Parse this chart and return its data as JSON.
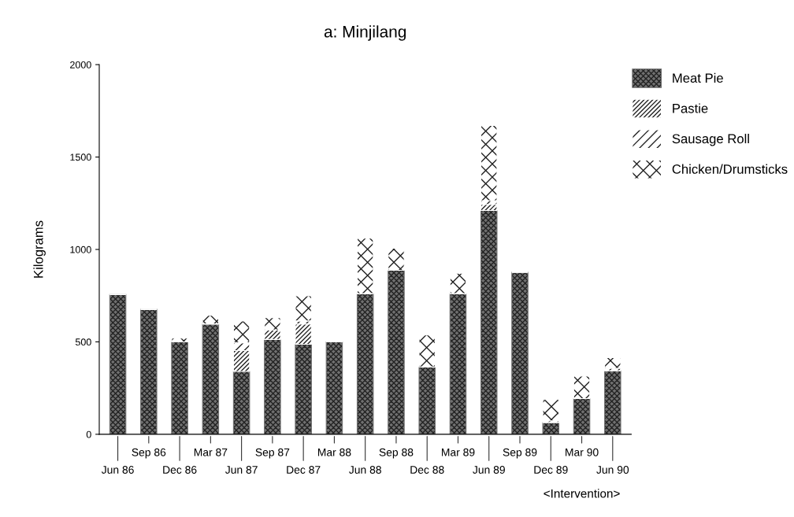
{
  "chart_data": {
    "type": "bar",
    "title": "a: Minjilang",
    "ylabel": "Kilograms",
    "stacked": true,
    "categories": [
      "Jun 86",
      "Sep 86",
      "Dec 86",
      "Mar 87",
      "Jun 87",
      "Sep 87",
      "Dec 87",
      "Mar 88",
      "Jun 88",
      "Sep 88",
      "Dec 88",
      "Mar 89",
      "Jun 89",
      "Sep 89",
      "Dec 89",
      "Mar 90",
      "Jun 90"
    ],
    "series": [
      {
        "name": "Meat Pie",
        "color": "#707070",
        "values": [
          756,
          676,
          500,
          597,
          340,
          513,
          487,
          500,
          761,
          887,
          364,
          761,
          1211,
          877,
          64,
          193,
          344
        ]
      },
      {
        "name": "Pastie",
        "color": "#ffffff",
        "values": [
          0,
          0,
          0,
          0,
          113,
          51,
          110,
          0,
          0,
          0,
          0,
          0,
          33,
          0,
          0,
          0,
          0
        ]
      },
      {
        "name": "Sausage Roll",
        "color": "#ffffff",
        "values": [
          0,
          0,
          0,
          0,
          42,
          0,
          16,
          0,
          0,
          0,
          0,
          0,
          20,
          0,
          9,
          0,
          13
        ]
      },
      {
        "name": "Chicken/Drumsticks",
        "color": "#ffffff",
        "values": [
          0,
          0,
          20,
          47,
          118,
          67,
          136,
          0,
          300,
          120,
          173,
          110,
          407,
          0,
          115,
          122,
          58
        ]
      }
    ],
    "ylim": [
      0,
      2000
    ],
    "yticks": [
      0,
      500,
      1000,
      1500,
      2000
    ],
    "grid": false,
    "legend": "top right",
    "annotations": [
      "<Intervention>"
    ]
  }
}
